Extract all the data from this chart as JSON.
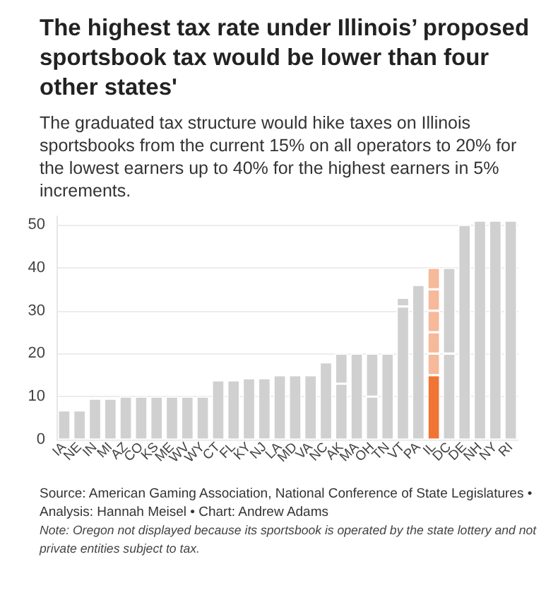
{
  "chart_data": {
    "type": "bar",
    "title": "The highest tax rate under Illinois’ proposed sportsbook tax would be lower than four other states'",
    "subtitle": "The graduated tax structure would hike taxes on Illinois sportsbooks from the current 15% on all operators to 20% for the lowest earners up to 40% for the highest earners in 5% increments.",
    "categories": [
      "IA",
      "NE",
      "IN",
      "MI",
      "AZ",
      "CO",
      "KS",
      "ME",
      "WV",
      "WY",
      "CT",
      "FL",
      "KY",
      "NJ",
      "LA",
      "MD",
      "VA",
      "NC",
      "AK",
      "MA",
      "OH",
      "TN",
      "VT",
      "PA",
      "IL",
      "DC",
      "DE",
      "NH",
      "NY",
      "RI"
    ],
    "stacked": true,
    "series": [
      {
        "colors": [
          "#d0d0d0",
          "#d0d0d0",
          "#d0d0d0",
          "#d0d0d0",
          "#d0d0d0",
          "#d0d0d0",
          "#d0d0d0",
          "#d0d0d0",
          "#d0d0d0",
          "#d0d0d0",
          "#d0d0d0",
          "#d0d0d0",
          "#d0d0d0",
          "#d0d0d0",
          "#d0d0d0",
          "#d0d0d0",
          "#d0d0d0",
          "#d0d0d0",
          "#d0d0d0",
          "#d0d0d0",
          "#d0d0d0",
          "#d0d0d0",
          "#d0d0d0",
          "#d0d0d0",
          "#f07434",
          "#d0d0d0",
          "#d0d0d0",
          "#d0d0d0",
          "#d0d0d0",
          "#d0d0d0"
        ],
        "values": [
          6.8,
          6.8,
          9.5,
          9.5,
          10,
          10,
          10,
          10,
          10,
          10,
          13.8,
          13.8,
          14.3,
          14.3,
          15,
          15,
          15,
          18,
          13,
          20,
          10,
          20,
          31,
          36,
          15,
          20,
          50,
          51,
          51,
          51
        ]
      },
      {
        "colors": [
          "#d0d0d0",
          "#d0d0d0",
          "#d0d0d0",
          "#d0d0d0",
          "#d0d0d0",
          "#d0d0d0",
          "#d0d0d0",
          "#d0d0d0",
          "#d0d0d0",
          "#d0d0d0",
          "#d0d0d0",
          "#d0d0d0",
          "#d0d0d0",
          "#d0d0d0",
          "#d0d0d0",
          "#d0d0d0",
          "#d0d0d0",
          "#d0d0d0",
          "#d0d0d0",
          "#d0d0d0",
          "#d0d0d0",
          "#d0d0d0",
          "#d0d0d0",
          "#d0d0d0",
          "#f6b999",
          "#d0d0d0",
          "#d0d0d0",
          "#d0d0d0",
          "#d0d0d0",
          "#d0d0d0"
        ],
        "values": [
          null,
          null,
          null,
          null,
          null,
          null,
          null,
          null,
          null,
          null,
          null,
          null,
          null,
          null,
          null,
          null,
          null,
          null,
          7,
          null,
          10,
          null,
          2,
          null,
          5,
          20,
          null,
          null,
          null,
          null
        ]
      },
      {
        "color": "#f6b999",
        "values": [
          null,
          null,
          null,
          null,
          null,
          null,
          null,
          null,
          null,
          null,
          null,
          null,
          null,
          null,
          null,
          null,
          null,
          null,
          null,
          null,
          null,
          null,
          null,
          null,
          5,
          null,
          null,
          null,
          null,
          null
        ]
      },
      {
        "color": "#f6b999",
        "values": [
          null,
          null,
          null,
          null,
          null,
          null,
          null,
          null,
          null,
          null,
          null,
          null,
          null,
          null,
          null,
          null,
          null,
          null,
          null,
          null,
          null,
          null,
          null,
          null,
          5,
          null,
          null,
          null,
          null,
          null
        ]
      },
      {
        "color": "#f6b999",
        "values": [
          null,
          null,
          null,
          null,
          null,
          null,
          null,
          null,
          null,
          null,
          null,
          null,
          null,
          null,
          null,
          null,
          null,
          null,
          null,
          null,
          null,
          null,
          null,
          null,
          5,
          null,
          null,
          null,
          null,
          null
        ]
      },
      {
        "color": "#f6b999",
        "values": [
          null,
          null,
          null,
          null,
          null,
          null,
          null,
          null,
          null,
          null,
          null,
          null,
          null,
          null,
          null,
          null,
          null,
          null,
          null,
          null,
          null,
          null,
          null,
          null,
          5,
          null,
          null,
          null,
          null,
          null
        ]
      }
    ],
    "ylim": [
      0,
      52
    ],
    "yticks": [
      0,
      10,
      20,
      30,
      40,
      50
    ],
    "grid": "y",
    "annotations": [
      "Source: American Gaming Association, National Conference of State Legislatures • Analysis: Hannah Meisel • Chart: Andrew Adams",
      "Note: Oregon not displayed because its sportsbook is operated by the state lottery and not private entities subject to tax."
    ]
  }
}
